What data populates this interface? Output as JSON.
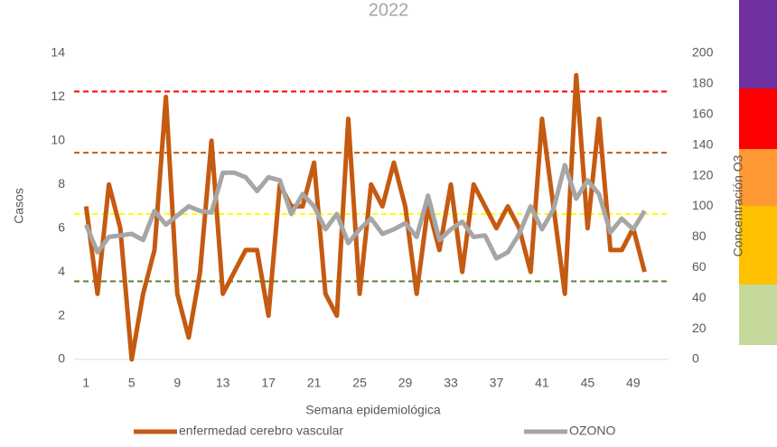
{
  "chart_data": {
    "type": "line",
    "title": "2022",
    "x_label": "Semana epidemiológica",
    "y_label": "Casos",
    "y2_label": "Concentración O3",
    "categories": [
      1,
      null,
      null,
      null,
      5,
      null,
      null,
      null,
      9,
      null,
      null,
      null,
      13,
      null,
      null,
      null,
      17,
      null,
      null,
      null,
      21,
      null,
      null,
      null,
      25,
      null,
      null,
      null,
      29,
      null,
      null,
      null,
      33,
      null,
      null,
      null,
      37,
      null,
      null,
      null,
      41,
      null,
      null,
      null,
      45,
      null,
      null,
      null,
      49,
      null,
      null,
      null
    ],
    "series": [
      {
        "name": "enfermedad cerebro vascular",
        "color": "#c55a11",
        "axis": "y",
        "values": [
          7,
          3,
          8,
          6,
          0,
          3,
          5,
          12,
          3,
          1,
          4,
          10,
          3,
          4,
          5,
          5,
          2,
          8,
          7,
          7,
          9,
          3,
          2,
          11,
          3,
          8,
          7,
          9,
          7,
          3,
          7,
          5,
          8,
          4,
          8,
          7,
          6,
          7,
          6,
          4,
          11,
          7,
          3,
          13,
          6,
          11,
          5,
          5,
          6,
          4,
          null,
          null
        ]
      },
      {
        "name": "OZONO",
        "color": "#a6a6a6",
        "axis": "y2",
        "values": [
          88,
          70,
          80,
          81,
          82,
          78,
          97,
          88,
          94,
          100,
          97,
          96,
          122,
          122,
          119,
          110,
          119,
          117,
          95,
          108,
          100,
          85,
          95,
          76,
          85,
          92,
          82,
          85,
          89,
          80,
          107,
          78,
          85,
          90,
          80,
          81,
          66,
          70,
          82,
          100,
          85,
          98,
          127,
          105,
          117,
          108,
          83,
          92,
          85,
          97,
          null,
          null
        ]
      }
    ],
    "ylim": [
      0,
      14
    ],
    "yticks": [
      0,
      2,
      4,
      6,
      8,
      10,
      12,
      14
    ],
    "y2lim": [
      0,
      200
    ],
    "y2ticks": [
      0,
      20,
      40,
      60,
      80,
      100,
      120,
      140,
      160,
      180,
      200
    ],
    "reference_lines": [
      {
        "value": 175,
        "color": "#ff0000",
        "axis": "y2"
      },
      {
        "value": 135,
        "color": "#c55a11",
        "axis": "y2"
      },
      {
        "value": 95,
        "color": "#ffff00",
        "axis": "y2"
      },
      {
        "value": 51,
        "color": "#548235",
        "axis": "y2"
      }
    ]
  }
}
